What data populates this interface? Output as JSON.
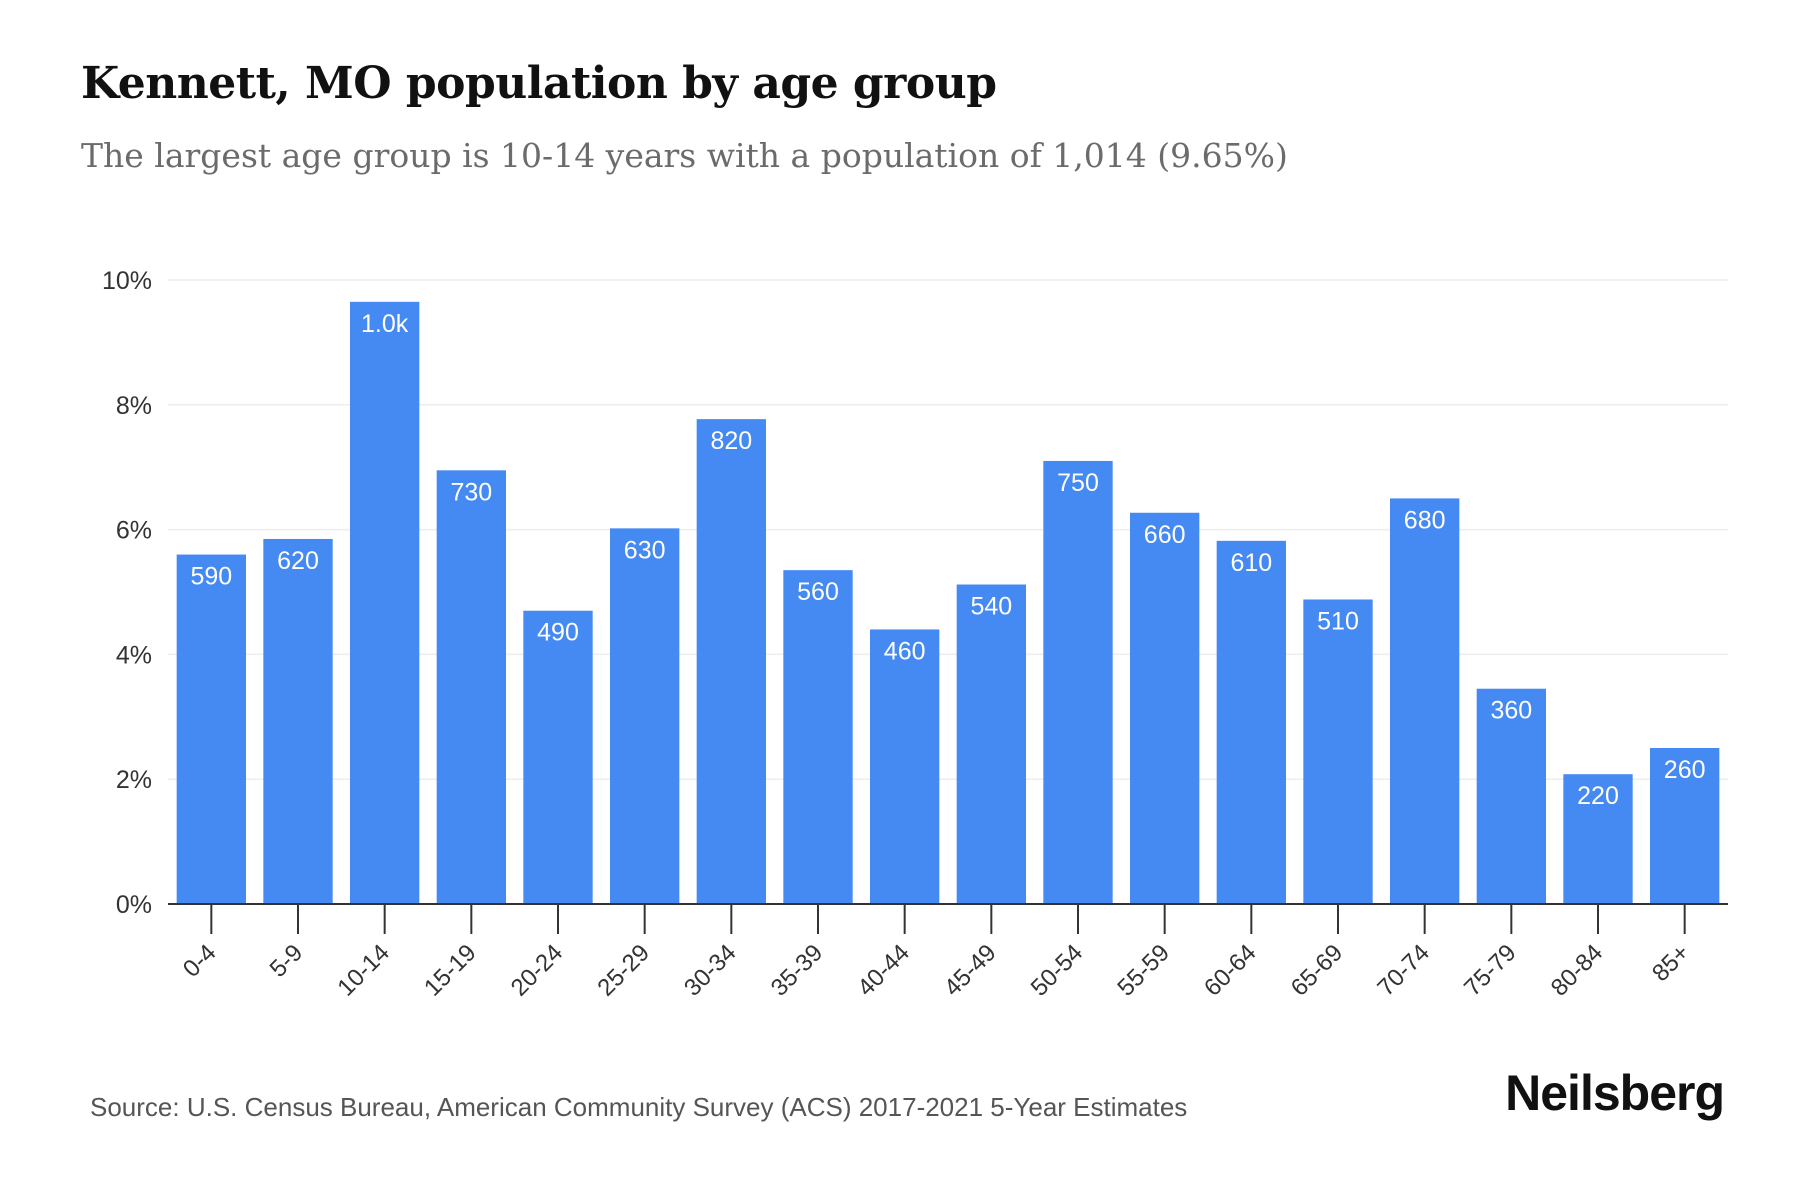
{
  "title": "Kennett, MO population by age group",
  "subtitle": "The largest age group is 10-14 years with a population of 1,014 (9.65%)",
  "source": "Source: U.S. Census Bureau, American Community Survey (ACS) 2017-2021 5-Year Estimates",
  "brand": "Neilsberg",
  "colors": {
    "bar": "#4589F2",
    "grid": "#eeeeee",
    "axis": "#333333",
    "label": "#ffffff"
  },
  "chart_data": {
    "type": "bar",
    "title": "Kennett, MO population by age group",
    "subtitle": "The largest age group is 10-14 years with a population of 1,014 (9.65%)",
    "xlabel": "",
    "ylabel": "",
    "ylim": [
      0,
      10
    ],
    "yticks": [
      "0%",
      "2%",
      "4%",
      "6%",
      "8%",
      "10%"
    ],
    "ytick_values": [
      0,
      2,
      4,
      6,
      8,
      10
    ],
    "grid": true,
    "categories": [
      "0-4",
      "5-9",
      "10-14",
      "15-19",
      "20-24",
      "25-29",
      "30-34",
      "35-39",
      "40-44",
      "45-49",
      "50-54",
      "55-59",
      "60-64",
      "65-69",
      "70-74",
      "75-79",
      "80-84",
      "85+"
    ],
    "values": [
      5.6,
      5.85,
      9.65,
      6.95,
      4.7,
      6.02,
      7.77,
      5.35,
      4.4,
      5.12,
      7.1,
      6.27,
      5.82,
      4.88,
      6.5,
      3.45,
      2.08,
      2.5
    ],
    "labels": [
      "590",
      "620",
      "1.0k",
      "730",
      "490",
      "630",
      "820",
      "560",
      "460",
      "540",
      "750",
      "660",
      "610",
      "510",
      "680",
      "360",
      "220",
      "260"
    ]
  }
}
